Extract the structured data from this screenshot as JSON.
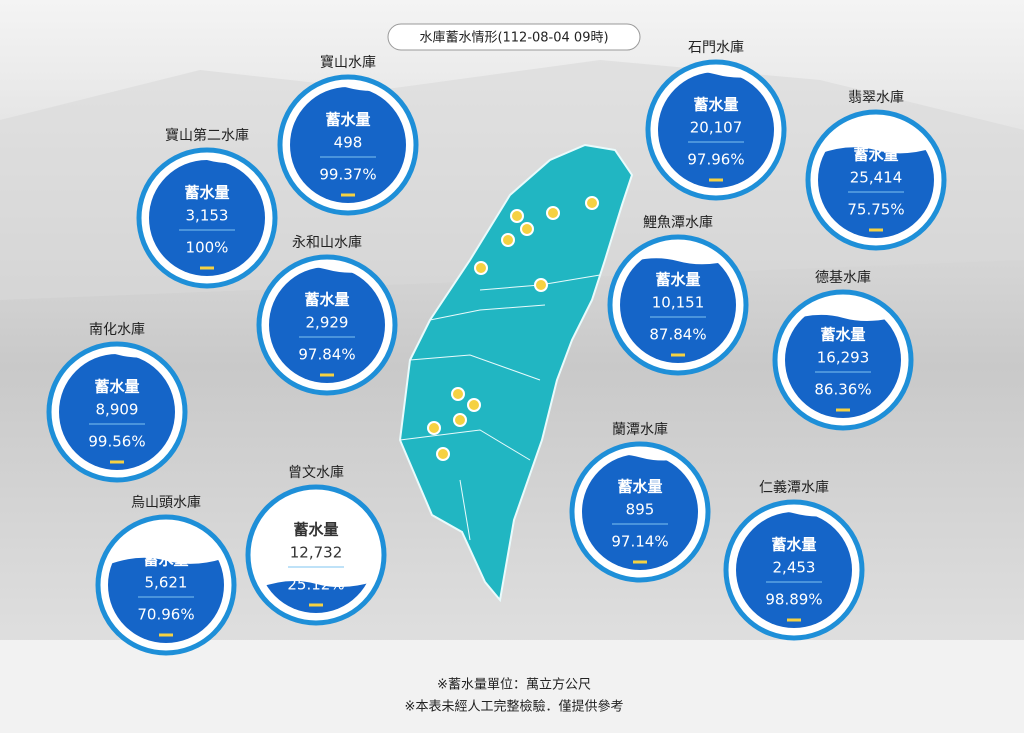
{
  "title": "水庫蓄水情形(112-08-04 09時)",
  "volume_label": "蓄水量",
  "reservoirs": [
    {
      "name": "寶山水庫",
      "volume": "498",
      "percent": "99.37%"
    },
    {
      "name": "寶山第二水庫",
      "volume": "3,153",
      "percent": "100%"
    },
    {
      "name": "永和山水庫",
      "volume": "2,929",
      "percent": "97.84%"
    },
    {
      "name": "南化水庫",
      "volume": "8,909",
      "percent": "99.56%"
    },
    {
      "name": "烏山頭水庫",
      "volume": "5,621",
      "percent": "70.96%"
    },
    {
      "name": "曾文水庫",
      "volume": "12,732",
      "percent": "25.12%"
    },
    {
      "name": "石門水庫",
      "volume": "20,107",
      "percent": "97.96%"
    },
    {
      "name": "翡翠水庫",
      "volume": "25,414",
      "percent": "75.75%"
    },
    {
      "name": "鯉魚潭水庫",
      "volume": "10,151",
      "percent": "87.84%"
    },
    {
      "name": "德基水庫",
      "volume": "16,293",
      "percent": "86.36%"
    },
    {
      "name": "蘭潭水庫",
      "volume": "895",
      "percent": "97.14%"
    },
    {
      "name": "仁義潭水庫",
      "volume": "2,453",
      "percent": "98.89%"
    }
  ],
  "notes": [
    "※蓄水量單位：萬立方公尺",
    "※本表未經人工完整檢驗．僅提供參考"
  ]
}
